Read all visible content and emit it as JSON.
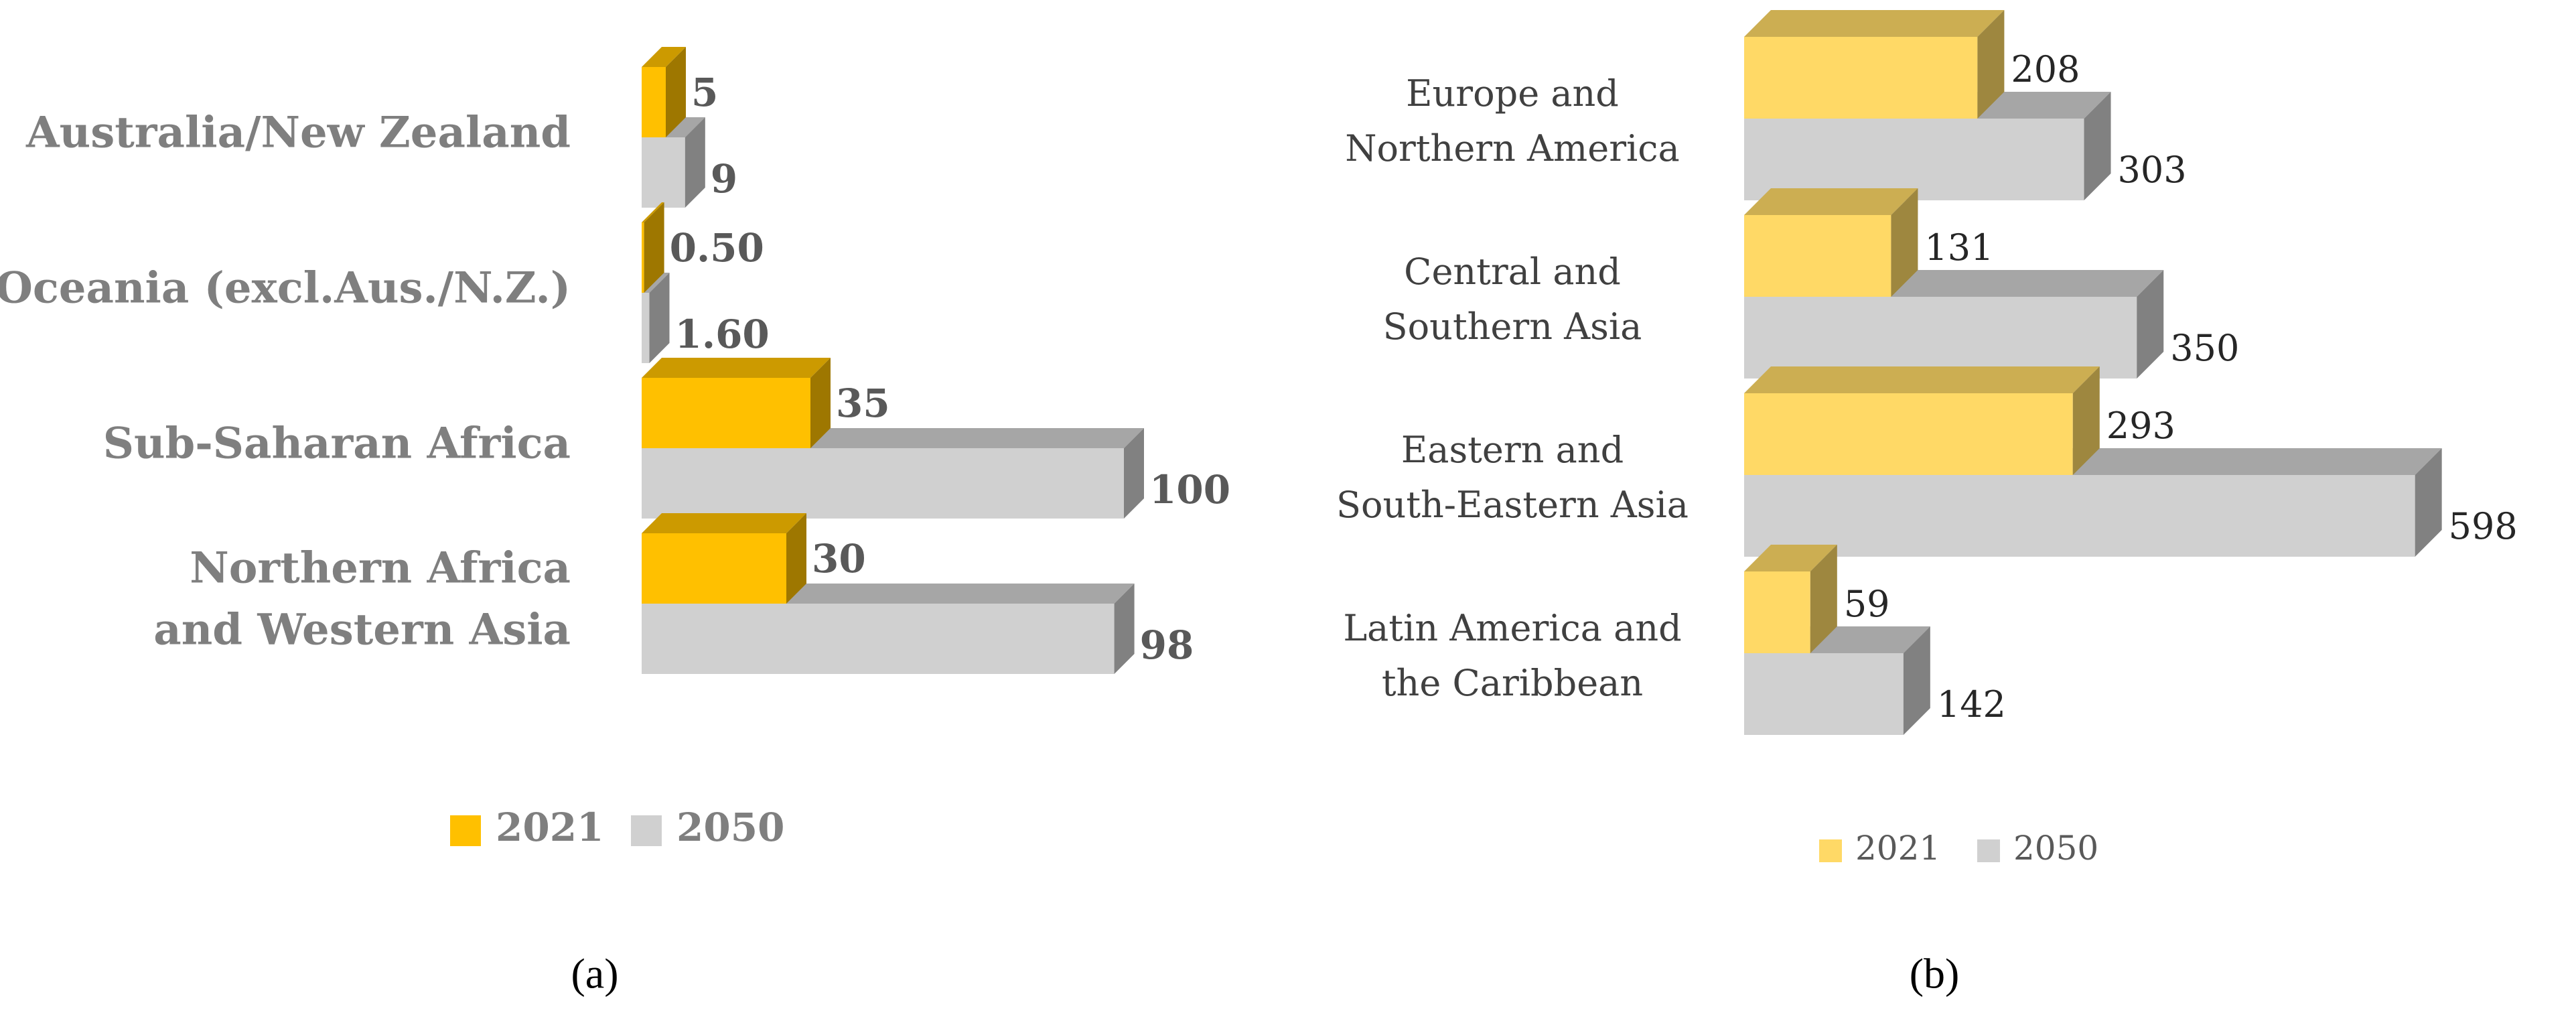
{
  "chart_data": [
    {
      "type": "bar",
      "orientation": "horizontal",
      "three_d": true,
      "categories": [
        "Australia/New Zealand",
        "Oceania (excl.Aus./N.Z.)",
        "Sub-Saharan Africa",
        [
          "Northern Africa",
          "and Western Asia"
        ]
      ],
      "series": [
        {
          "name": "2021",
          "color": "#ffc000",
          "values": [
            5,
            0.5,
            35,
            30
          ],
          "labels": [
            "5",
            "0.50",
            "35",
            "30"
          ]
        },
        {
          "name": "2050",
          "color": "#d0d0d0",
          "values": [
            9,
            1.6,
            100,
            98
          ],
          "labels": [
            "9",
            "1.60",
            "100",
            "98"
          ]
        }
      ],
      "legend": "bottom",
      "grid": false,
      "caption": "(a)"
    },
    {
      "type": "bar",
      "orientation": "horizontal",
      "three_d": true,
      "categories": [
        [
          "Europe and",
          "Northern America"
        ],
        [
          "Central and",
          "Southern Asia"
        ],
        [
          "Eastern and",
          "South-Eastern Asia"
        ],
        [
          "Latin America and",
          "the Caribbean"
        ]
      ],
      "series": [
        {
          "name": "2021",
          "color": "#ffd966",
          "values": [
            208,
            131,
            293,
            59
          ],
          "labels": [
            "208",
            "131",
            "293",
            "59"
          ]
        },
        {
          "name": "2050",
          "color": "#d0d0d0",
          "values": [
            303,
            350,
            598,
            142
          ],
          "labels": [
            "303",
            "350",
            "598",
            "142"
          ]
        }
      ],
      "legend": "bottom",
      "grid": false,
      "caption": "(b)"
    }
  ]
}
